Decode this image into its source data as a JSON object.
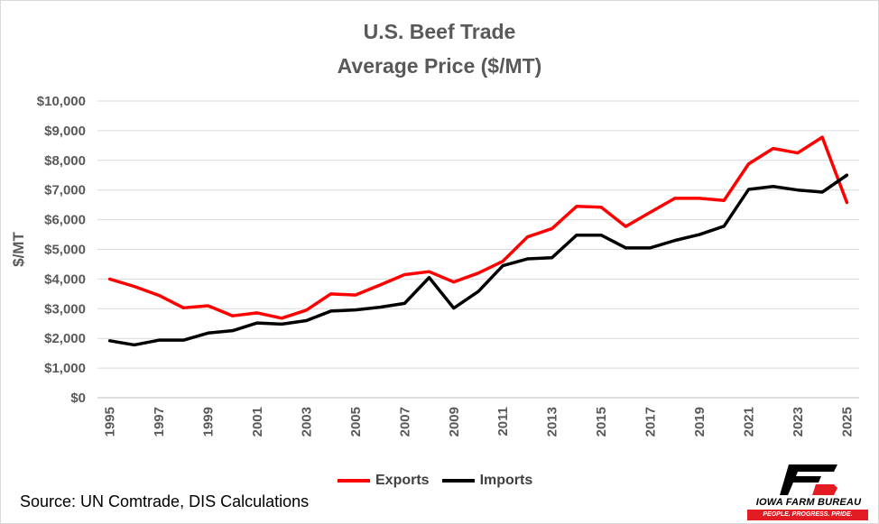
{
  "chart_data": {
    "type": "line",
    "title": "U.S. Beef Trade",
    "subtitle": "Average Price ($/MT)",
    "xlabel": "",
    "ylabel": "$/MT",
    "ylim": [
      0,
      10000
    ],
    "yticks": [
      "$0",
      "$1,000",
      "$2,000",
      "$3,000",
      "$4,000",
      "$5,000",
      "$6,000",
      "$7,000",
      "$8,000",
      "$9,000",
      "$10,000"
    ],
    "x": [
      1995,
      1996,
      1997,
      1998,
      1999,
      2000,
      2001,
      2002,
      2003,
      2004,
      2005,
      2006,
      2007,
      2008,
      2009,
      2010,
      2011,
      2012,
      2013,
      2014,
      2015,
      2016,
      2017,
      2018,
      2019,
      2020,
      2021,
      2022,
      2023,
      2024,
      2025
    ],
    "xticks": [
      "1995",
      "1997",
      "1999",
      "2001",
      "2003",
      "2005",
      "2007",
      "2009",
      "2011",
      "2013",
      "2015",
      "2017",
      "2019",
      "2021",
      "2023",
      "2025"
    ],
    "grid": true,
    "legend": "bottom",
    "series": [
      {
        "name": "Exports",
        "color": "#ff0000",
        "values": [
          4000,
          3750,
          3450,
          3030,
          3100,
          2760,
          2860,
          2680,
          2950,
          3500,
          3460,
          3800,
          4150,
          4250,
          3900,
          4200,
          4600,
          5420,
          5700,
          6450,
          6420,
          5770,
          6250,
          6720,
          6720,
          6650,
          7880,
          8400,
          8250,
          8780,
          6580
        ]
      },
      {
        "name": "Imports",
        "color": "#000000",
        "values": [
          1920,
          1780,
          1940,
          1940,
          2180,
          2260,
          2520,
          2480,
          2600,
          2920,
          2960,
          3050,
          3180,
          4050,
          3020,
          3580,
          4450,
          4680,
          4720,
          5480,
          5480,
          5050,
          5050,
          5300,
          5500,
          5780,
          7020,
          7120,
          7000,
          6930,
          7500
        ]
      }
    ]
  },
  "source_text": "Source: UN Comtrade, DIS Calculations",
  "logo": {
    "name": "IOWA FARM BUREAU",
    "tagline": "PEOPLE. PROGRESS. PRIDE.",
    "color": "#e31b23"
  }
}
